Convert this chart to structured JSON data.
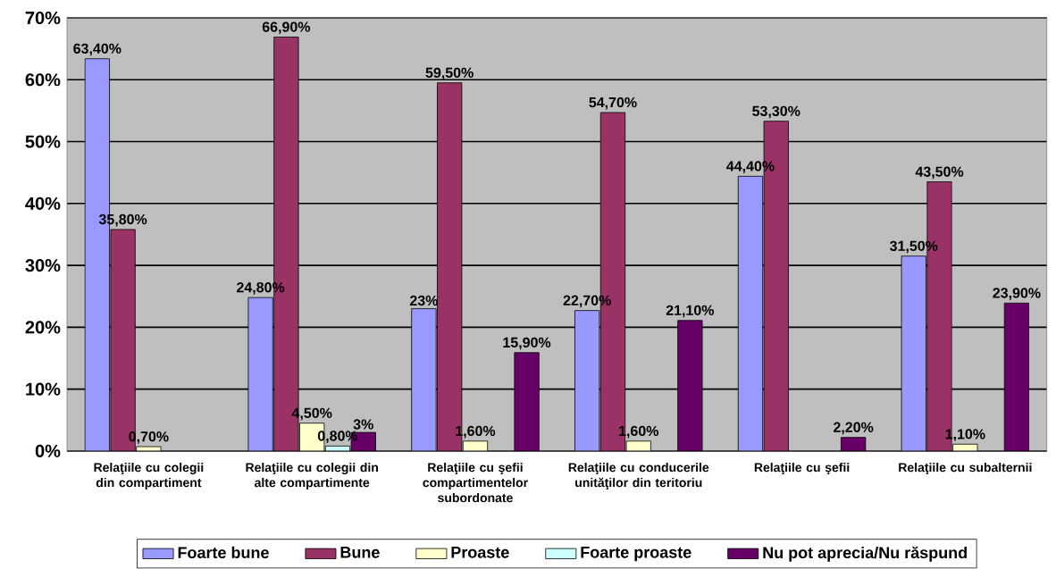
{
  "chart_data": {
    "type": "bar",
    "categories": [
      "Relaţiile cu colegii din compartiment",
      "Relaţiile cu colegii din alte compartimente",
      "Relaţiile cu şefii compartimentelor subordonate",
      "Relaţiile cu conducerile unităţilor din teritoriu",
      "Relaţiile cu şefii",
      "Relaţiile cu subalternii"
    ],
    "series": [
      {
        "name": "Foarte bune",
        "color": "#9999ff",
        "values": [
          63.4,
          24.8,
          23,
          22.7,
          44.4,
          31.5
        ],
        "value_labels": [
          "63,40%",
          "24,80%",
          "23%",
          "22,70%",
          "44,40%",
          "31,50%"
        ]
      },
      {
        "name": "Bune",
        "color": "#993366",
        "values": [
          35.8,
          66.9,
          59.5,
          54.7,
          53.3,
          43.5
        ],
        "value_labels": [
          "35,80%",
          "66,90%",
          "59,50%",
          "54,70%",
          "53,30%",
          "43,50%"
        ]
      },
      {
        "name": "Proaste",
        "color": "#ffffcc",
        "values": [
          0.7,
          4.5,
          1.6,
          1.6,
          null,
          1.1
        ],
        "value_labels": [
          "0,70%",
          "4,50%",
          "1,60%",
          "1,60%",
          null,
          "1,10%"
        ]
      },
      {
        "name": "Foarte proaste",
        "color": "#ccffff",
        "values": [
          null,
          0.8,
          null,
          null,
          null,
          null
        ],
        "value_labels": [
          null,
          "0,80%",
          null,
          null,
          null,
          null
        ]
      },
      {
        "name": "Nu pot aprecia/Nu răspund",
        "color": "#660066",
        "values": [
          null,
          3,
          15.9,
          21.1,
          2.2,
          23.9
        ],
        "value_labels": [
          null,
          "3%",
          "15,90%",
          "21,10%",
          "2,20%",
          "23,90%"
        ]
      }
    ],
    "ylim": [
      0,
      70
    ],
    "yticks": [
      {
        "value": 0,
        "label": "0%"
      },
      {
        "value": 10,
        "label": "10%"
      },
      {
        "value": 20,
        "label": "20%"
      },
      {
        "value": 30,
        "label": "30%"
      },
      {
        "value": 40,
        "label": "40%"
      },
      {
        "value": 50,
        "label": "50%"
      },
      {
        "value": 60,
        "label": "60%"
      },
      {
        "value": 70,
        "label": "70%"
      }
    ],
    "grid": "y",
    "legend": "bottom"
  }
}
